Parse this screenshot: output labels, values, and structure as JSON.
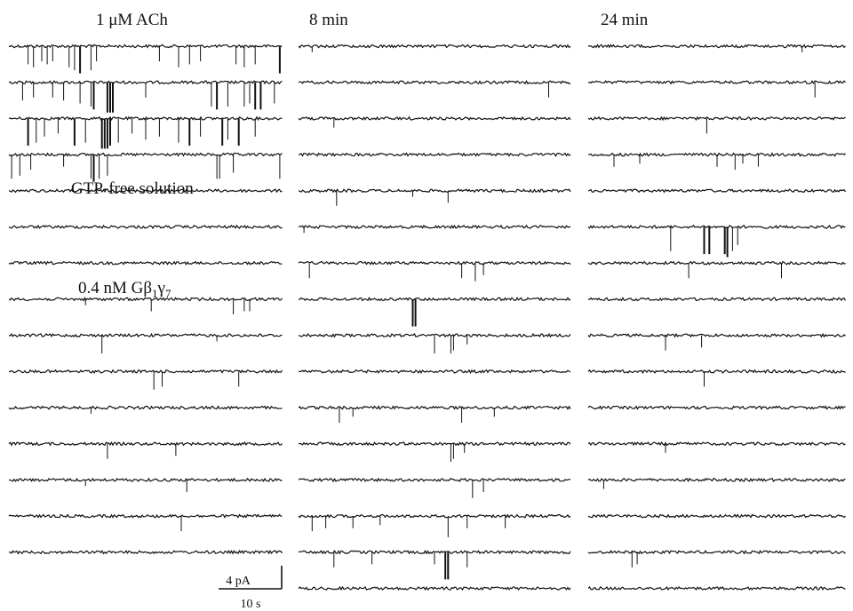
{
  "chart_data": {
    "type": "line",
    "panels": [
      {
        "title": "1 μM ACh",
        "segments": [
          {
            "label": "GTP-free solution",
            "before_trace": 4
          },
          {
            "label": "0.4 nM Gβ1γ7",
            "before_trace": 7
          }
        ],
        "traces": [
          {
            "events": [
              [
                0.07,
                0.6
              ],
              [
                0.09,
                0.7
              ],
              [
                0.12,
                0.5
              ],
              [
                0.14,
                0.6
              ],
              [
                0.16,
                0.5
              ],
              [
                0.22,
                0.7
              ],
              [
                0.24,
                0.8
              ],
              [
                0.26,
                0.9
              ],
              [
                0.3,
                0.8
              ],
              [
                0.32,
                0.5
              ],
              [
                0.55,
                0.5
              ],
              [
                0.62,
                0.7
              ],
              [
                0.66,
                0.6
              ],
              [
                0.7,
                0.5
              ],
              [
                0.83,
                0.6
              ],
              [
                0.86,
                0.7
              ],
              [
                0.9,
                0.6
              ],
              [
                0.99,
                0.9
              ]
            ]
          },
          {
            "events": [
              [
                0.05,
                0.6
              ],
              [
                0.09,
                0.5
              ],
              [
                0.16,
                0.5
              ],
              [
                0.2,
                0.6
              ],
              [
                0.26,
                0.7
              ],
              [
                0.3,
                0.8
              ],
              [
                0.31,
                0.9
              ],
              [
                0.36,
                1.0
              ],
              [
                0.37,
                1.0
              ],
              [
                0.38,
                1.0
              ],
              [
                0.5,
                0.5
              ],
              [
                0.74,
                0.8
              ],
              [
                0.76,
                0.9
              ],
              [
                0.8,
                0.8
              ],
              [
                0.86,
                0.8
              ],
              [
                0.88,
                0.7
              ],
              [
                0.9,
                0.9
              ],
              [
                0.92,
                0.9
              ],
              [
                0.97,
                0.7
              ]
            ]
          },
          {
            "events": [
              [
                0.07,
                0.9
              ],
              [
                0.1,
                0.8
              ],
              [
                0.13,
                0.6
              ],
              [
                0.18,
                0.5
              ],
              [
                0.24,
                0.9
              ],
              [
                0.28,
                0.8
              ],
              [
                0.34,
                1.0
              ],
              [
                0.35,
                1.0
              ],
              [
                0.36,
                1.0
              ],
              [
                0.37,
                0.9
              ],
              [
                0.4,
                0.8
              ],
              [
                0.45,
                0.5
              ],
              [
                0.5,
                0.7
              ],
              [
                0.55,
                0.6
              ],
              [
                0.62,
                0.8
              ],
              [
                0.66,
                0.9
              ],
              [
                0.7,
                0.6
              ],
              [
                0.78,
                0.9
              ],
              [
                0.8,
                0.7
              ],
              [
                0.84,
                0.9
              ],
              [
                0.9,
                0.6
              ]
            ]
          },
          {
            "events": [
              [
                0.01,
                0.8
              ],
              [
                0.04,
                0.7
              ],
              [
                0.08,
                0.5
              ],
              [
                0.2,
                0.4
              ],
              [
                0.3,
                0.8
              ],
              [
                0.31,
                0.9
              ],
              [
                0.33,
                0.8
              ],
              [
                0.36,
                0.7
              ],
              [
                0.76,
                0.8
              ],
              [
                0.77,
                0.8
              ],
              [
                0.82,
                0.6
              ],
              [
                0.99,
                0.8
              ]
            ]
          },
          {
            "events": []
          },
          {
            "events": []
          },
          {
            "events": []
          },
          {
            "events": [
              [
                0.28,
                0.2
              ],
              [
                0.52,
                0.4
              ],
              [
                0.82,
                0.5
              ],
              [
                0.86,
                0.4
              ],
              [
                0.88,
                0.4
              ]
            ]
          },
          {
            "events": [
              [
                0.34,
                0.6
              ],
              [
                0.76,
                0.2
              ]
            ]
          },
          {
            "events": [
              [
                0.53,
                0.6
              ],
              [
                0.56,
                0.5
              ],
              [
                0.84,
                0.5
              ]
            ]
          },
          {
            "events": [
              [
                0.3,
                0.2
              ]
            ]
          },
          {
            "events": [
              [
                0.36,
                0.5
              ],
              [
                0.61,
                0.4
              ]
            ]
          },
          {
            "events": [
              [
                0.65,
                0.4
              ],
              [
                0.28,
                0.2
              ]
            ]
          },
          {
            "events": [
              [
                0.63,
                0.5
              ]
            ]
          },
          {
            "events": []
          }
        ]
      },
      {
        "title": "8 min",
        "segments": [],
        "traces": [
          {
            "events": [
              [
                0.05,
                0.2
              ]
            ]
          },
          {
            "events": [
              [
                0.92,
                0.5
              ]
            ]
          },
          {
            "events": [
              [
                0.13,
                0.3
              ]
            ]
          },
          {
            "events": []
          },
          {
            "events": [
              [
                0.14,
                0.5
              ],
              [
                0.55,
                0.4
              ],
              [
                0.42,
                0.2
              ]
            ]
          },
          {
            "events": [
              [
                0.02,
                0.2
              ]
            ]
          },
          {
            "events": [
              [
                0.04,
                0.5
              ],
              [
                0.6,
                0.5
              ],
              [
                0.65,
                0.6
              ],
              [
                0.68,
                0.4
              ]
            ]
          },
          {
            "events": [
              [
                0.42,
                0.9
              ],
              [
                0.43,
                0.9
              ]
            ]
          },
          {
            "events": [
              [
                0.5,
                0.6
              ],
              [
                0.56,
                0.6
              ],
              [
                0.57,
                0.5
              ],
              [
                0.62,
                0.3
              ]
            ]
          },
          {
            "events": []
          },
          {
            "events": [
              [
                0.15,
                0.5
              ],
              [
                0.2,
                0.3
              ],
              [
                0.6,
                0.5
              ],
              [
                0.72,
                0.3
              ]
            ]
          },
          {
            "events": [
              [
                0.56,
                0.6
              ],
              [
                0.57,
                0.5
              ],
              [
                0.61,
                0.3
              ]
            ]
          },
          {
            "events": [
              [
                0.64,
                0.6
              ],
              [
                0.68,
                0.4
              ]
            ]
          },
          {
            "events": [
              [
                0.05,
                0.5
              ],
              [
                0.1,
                0.4
              ],
              [
                0.2,
                0.4
              ],
              [
                0.3,
                0.3
              ],
              [
                0.55,
                0.7
              ],
              [
                0.62,
                0.4
              ],
              [
                0.76,
                0.4
              ]
            ]
          },
          {
            "events": [
              [
                0.13,
                0.5
              ],
              [
                0.27,
                0.4
              ],
              [
                0.5,
                0.4
              ],
              [
                0.54,
                0.9
              ],
              [
                0.55,
                0.9
              ],
              [
                0.62,
                0.5
              ]
            ]
          },
          {
            "events": []
          }
        ]
      },
      {
        "title": "24 min",
        "segments": [],
        "traces": [
          {
            "events": [
              [
                0.83,
                0.2
              ]
            ]
          },
          {
            "events": [
              [
                0.88,
                0.5
              ]
            ]
          },
          {
            "events": [
              [
                0.46,
                0.5
              ]
            ]
          },
          {
            "events": [
              [
                0.1,
                0.4
              ],
              [
                0.2,
                0.3
              ],
              [
                0.5,
                0.4
              ],
              [
                0.57,
                0.5
              ],
              [
                0.6,
                0.3
              ],
              [
                0.66,
                0.4
              ]
            ]
          },
          {
            "events": []
          },
          {
            "events": [
              [
                0.32,
                0.8
              ],
              [
                0.45,
                0.9
              ],
              [
                0.47,
                0.9
              ],
              [
                0.53,
                0.9
              ],
              [
                0.54,
                1.0
              ],
              [
                0.56,
                0.8
              ],
              [
                0.58,
                0.6
              ]
            ]
          },
          {
            "events": [
              [
                0.39,
                0.5
              ],
              [
                0.75,
                0.5
              ]
            ]
          },
          {
            "events": []
          },
          {
            "events": [
              [
                0.3,
                0.5
              ],
              [
                0.44,
                0.4
              ]
            ]
          },
          {
            "events": [
              [
                0.45,
                0.5
              ]
            ]
          },
          {
            "events": []
          },
          {
            "events": [
              [
                0.3,
                0.3
              ]
            ]
          },
          {
            "events": [
              [
                0.06,
                0.3
              ]
            ]
          },
          {
            "events": []
          },
          {
            "events": [
              [
                0.17,
                0.5
              ],
              [
                0.19,
                0.4
              ]
            ]
          },
          {
            "events": []
          }
        ]
      }
    ],
    "scale_bar": {
      "y_label": "4 pA",
      "x_label": "10 s"
    }
  }
}
